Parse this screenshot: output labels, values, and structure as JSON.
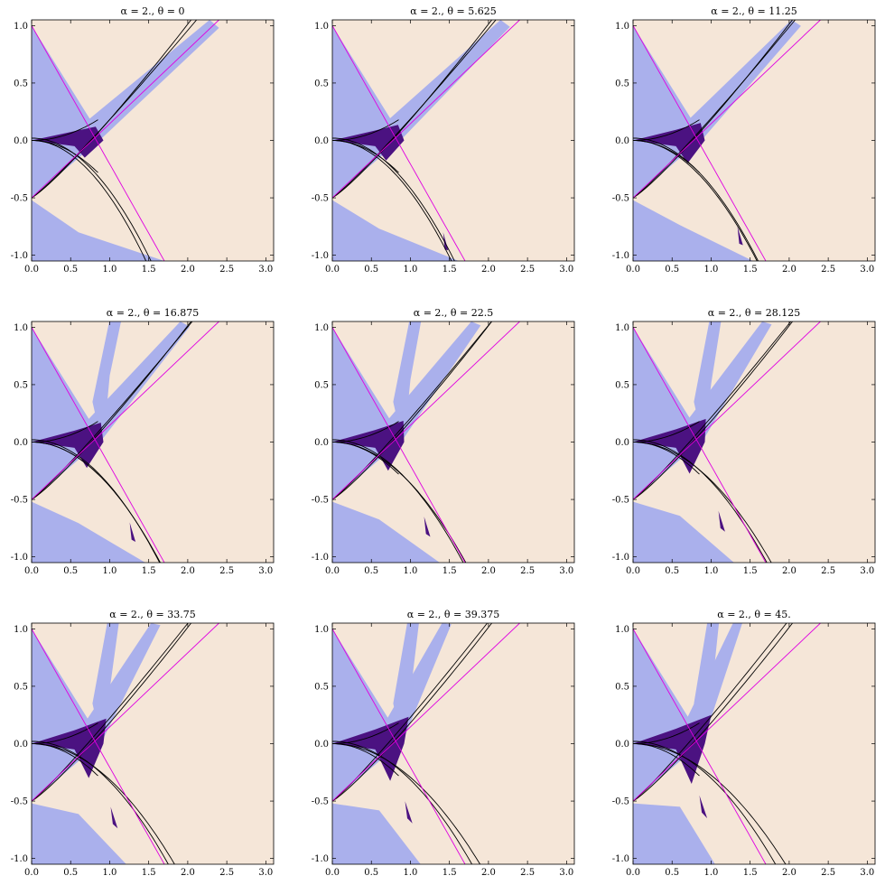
{
  "chart_data": {
    "type": "region-plot-grid",
    "rows": 3,
    "cols": 3,
    "grid": false,
    "xlim": [
      0,
      3.1
    ],
    "ylim": [
      -1.05,
      1.05
    ],
    "x_ticks": [
      "0.0",
      "0.5",
      "1.0",
      "1.5",
      "2.0",
      "2.5",
      "3.0"
    ],
    "x_tick_values": [
      0,
      0.5,
      1.0,
      1.5,
      2.0,
      2.5,
      3.0
    ],
    "y_ticks": [
      "1.0",
      "0.5",
      "0.0",
      "-0.5",
      "-1.0"
    ],
    "y_tick_values": [
      1.0,
      0.5,
      0.0,
      -0.5,
      -1.0
    ],
    "colors": {
      "background_region": "#f5e6d8",
      "light_region": "#aab0ec",
      "dark_region": "#4b1281",
      "curve_black": "#000000",
      "curve_magenta": "#e000e0"
    },
    "panels": [
      {
        "title": "α = 2., θ = 0",
        "alpha": 2.0,
        "theta": 0
      },
      {
        "title": "α = 2., θ = 5.625",
        "alpha": 2.0,
        "theta": 5.625
      },
      {
        "title": "α = 2., θ = 11.25",
        "alpha": 2.0,
        "theta": 11.25
      },
      {
        "title": "α = 2., θ = 16.875",
        "alpha": 2.0,
        "theta": 16.875
      },
      {
        "title": "α = 2., θ = 22.5",
        "alpha": 2.0,
        "theta": 22.5
      },
      {
        "title": "α = 2., θ = 28.125",
        "alpha": 2.0,
        "theta": 28.125
      },
      {
        "title": "α = 2., θ = 33.75",
        "alpha": 2.0,
        "theta": 33.75
      },
      {
        "title": "α = 2., θ = 39.375",
        "alpha": 2.0,
        "theta": 39.375
      },
      {
        "title": "α = 2., θ = 45.",
        "alpha": 2.0,
        "theta": 45.0
      }
    ]
  }
}
